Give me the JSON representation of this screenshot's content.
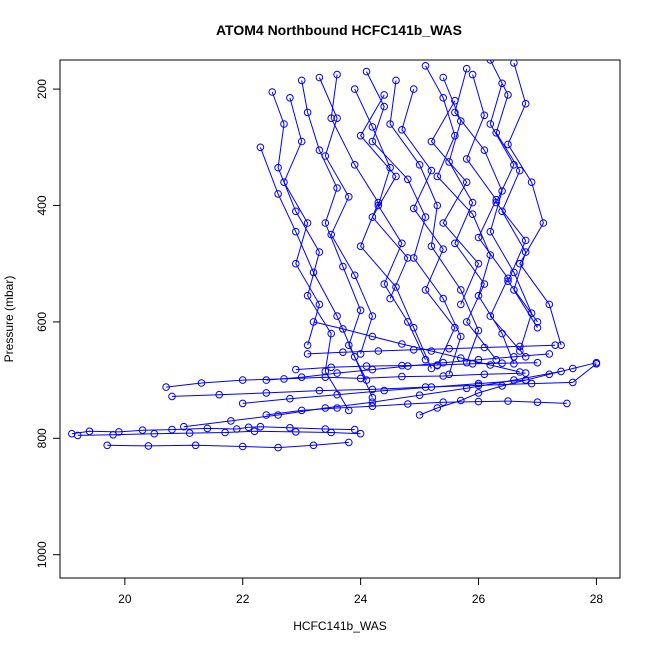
{
  "chart_data": {
    "type": "scatter",
    "title": "ATOM4 Northbound HCFC141b_WAS",
    "xlabel": "HCFC141b_WAS",
    "ylabel": "Pressure (mbar)",
    "xlim": [
      18.9,
      28.4
    ],
    "ylim": [
      1040,
      150
    ],
    "y_reversed": true,
    "grid": false,
    "legend": "none",
    "marker": "open-circle",
    "connect_points": true,
    "color": "#0000ff",
    "x_ticks": [
      20,
      22,
      24,
      26,
      28
    ],
    "x_tick_labels": [
      "20",
      "22",
      "24",
      "26",
      "28"
    ],
    "y_ticks": [
      200,
      400,
      600,
      800,
      1000
    ],
    "y_tick_labels": [
      "200",
      "400",
      "600",
      "800",
      "1000"
    ],
    "series": [
      {
        "x": [
          19.1,
          19.4,
          19.9,
          20.3,
          20.8,
          21.4,
          21.9,
          22.1,
          22.3,
          22.8,
          23.4,
          23.9
        ],
        "y": [
          792,
          788,
          789,
          786,
          785,
          783,
          784,
          781,
          780,
          782,
          784,
          785
        ]
      },
      {
        "x": [
          19.2,
          19.8,
          20.5,
          21.1,
          21.7,
          22.2,
          22.9,
          23.5,
          24.0
        ],
        "y": [
          795,
          794,
          792,
          791,
          790,
          788,
          789,
          790,
          792
        ]
      },
      {
        "x": [
          19.7,
          20.4,
          21.2,
          22.0,
          22.6,
          23.2,
          23.8
        ],
        "y": [
          812,
          813,
          812,
          814,
          816,
          812,
          807
        ]
      },
      {
        "x": [
          20.7,
          21.3,
          22.0,
          22.7,
          23.4,
          24.0,
          24.7,
          25.4,
          26.1,
          26.8
        ],
        "y": [
          712,
          705,
          700,
          698,
          695,
          697,
          694,
          693,
          690,
          688
        ]
      },
      {
        "x": [
          20.8,
          21.6,
          22.4,
          23.3,
          24.2,
          25.1,
          26.0,
          26.9,
          27.6,
          28.0
        ],
        "y": [
          728,
          725,
          722,
          718,
          716,
          712,
          709,
          706,
          704,
          672
        ]
      },
      {
        "x": [
          22.4,
          23.0,
          23.6,
          24.2,
          24.8,
          25.4,
          26.0,
          26.5,
          27.0,
          27.5
        ],
        "y": [
          760,
          752,
          748,
          745,
          741,
          738,
          737,
          736,
          738,
          740
        ]
      },
      {
        "x": [
          22.9,
          23.5,
          24.1,
          24.7,
          25.3,
          25.9,
          26.4,
          27.0
        ],
        "y": [
          682,
          678,
          676,
          675,
          674,
          672,
          671,
          670
        ]
      },
      {
        "x": [
          23.1,
          23.7,
          24.3,
          24.9,
          25.5,
          26.1,
          26.7,
          27.3
        ],
        "y": [
          655,
          652,
          650,
          648,
          646,
          644,
          642,
          640
        ]
      },
      {
        "x": [
          22.5,
          22.7,
          22.6,
          22.9,
          23.3,
          23.1,
          23.5,
          23.4,
          23.8
        ],
        "y": [
          205,
          260,
          335,
          410,
          480,
          555,
          620,
          685,
          752
        ]
      },
      {
        "x": [
          22.3,
          22.6,
          22.9,
          23.2,
          23.6,
          23.9,
          24.2
        ],
        "y": [
          300,
          380,
          445,
          515,
          590,
          660,
          730
        ]
      },
      {
        "x": [
          23.0,
          23.1,
          23.3,
          23.6,
          23.4,
          23.7,
          24.0,
          23.8,
          24.1
        ],
        "y": [
          185,
          240,
          305,
          370,
          430,
          505,
          580,
          640,
          700
        ]
      },
      {
        "x": [
          23.6,
          23.5,
          23.9,
          24.3,
          24.0,
          24.6,
          24.9,
          25.2
        ],
        "y": [
          175,
          250,
          330,
          395,
          470,
          540,
          610,
          680
        ]
      },
      {
        "x": [
          24.1,
          24.4,
          24.2,
          24.8,
          25.1,
          24.9,
          25.4,
          25.7,
          25.5
        ],
        "y": [
          170,
          230,
          290,
          355,
          420,
          490,
          560,
          625,
          690
        ]
      },
      {
        "x": [
          24.6,
          24.5,
          25.0,
          25.3,
          25.2,
          25.7,
          26.0,
          25.8
        ],
        "y": [
          185,
          260,
          330,
          400,
          470,
          545,
          615,
          670
        ]
      },
      {
        "x": [
          25.1,
          25.4,
          25.6,
          25.3,
          25.9,
          26.2,
          26.0,
          26.4,
          26.6
        ],
        "y": [
          160,
          215,
          280,
          350,
          415,
          485,
          555,
          620,
          672
        ]
      },
      {
        "x": [
          25.8,
          25.6,
          26.1,
          26.4,
          26.2,
          26.6,
          26.9,
          26.7
        ],
        "y": [
          165,
          240,
          305,
          375,
          445,
          515,
          585,
          650
        ]
      },
      {
        "x": [
          26.2,
          26.5,
          26.3,
          26.7,
          26.4,
          26.8,
          26.6,
          27.0
        ],
        "y": [
          150,
          210,
          275,
          340,
          410,
          480,
          545,
          610
        ]
      },
      {
        "x": [
          26.6,
          26.8,
          26.5,
          26.9,
          27.1,
          26.7,
          27.2,
          27.4
        ],
        "y": [
          155,
          225,
          295,
          360,
          430,
          500,
          570,
          640
        ]
      },
      {
        "x": [
          25.9,
          26.1,
          25.8,
          26.3,
          26.0,
          26.5,
          26.2,
          26.8
        ],
        "y": [
          175,
          245,
          320,
          390,
          455,
          525,
          590,
          660
        ]
      },
      {
        "x": [
          25.4,
          25.7,
          25.5,
          25.9,
          25.6,
          26.1,
          25.8,
          26.3
        ],
        "y": [
          180,
          255,
          325,
          395,
          465,
          535,
          600,
          665
        ]
      },
      {
        "x": [
          24.9,
          24.7,
          25.2,
          24.9,
          25.4,
          25.1,
          25.6,
          25.3
        ],
        "y": [
          200,
          270,
          340,
          405,
          475,
          545,
          610,
          675
        ]
      },
      {
        "x": [
          23.3,
          23.6,
          23.4,
          23.8,
          23.5,
          23.9,
          24.2,
          24.0
        ],
        "y": [
          180,
          250,
          315,
          385,
          450,
          520,
          590,
          655
        ]
      },
      {
        "x": [
          22.8,
          23.0,
          22.7,
          23.1,
          22.9,
          23.3,
          23.1
        ],
        "y": [
          215,
          290,
          360,
          430,
          500,
          570,
          640
        ]
      },
      {
        "x": [
          23.9,
          24.2,
          24.5,
          24.3,
          24.7,
          24.4,
          24.8,
          25.1
        ],
        "y": [
          200,
          265,
          335,
          400,
          465,
          535,
          600,
          665
        ]
      },
      {
        "x": [
          26.4,
          26.2,
          26.6,
          26.3,
          26.8,
          26.5,
          27.0
        ],
        "y": [
          190,
          260,
          330,
          395,
          460,
          530,
          600
        ]
      },
      {
        "x": [
          25.0,
          25.3,
          25.7,
          26.0,
          26.4,
          26.8,
          27.2,
          27.6,
          28.0
        ],
        "y": [
          760,
          748,
          735,
          722,
          710,
          700,
          690,
          680,
          670
        ]
      },
      {
        "x": [
          21.0,
          21.8,
          22.6,
          23.4,
          24.2,
          25.0,
          25.8,
          26.6,
          27.4
        ],
        "y": [
          780,
          770,
          760,
          748,
          738,
          726,
          714,
          700,
          685
        ]
      },
      {
        "x": [
          22.0,
          22.8,
          23.6,
          24.4,
          25.2,
          26.0,
          26.8
        ],
        "y": [
          740,
          732,
          725,
          718,
          712,
          706,
          700
        ]
      },
      {
        "x": [
          23.2,
          23.7,
          24.2,
          24.7,
          25.2,
          25.7,
          26.2,
          26.7
        ],
        "y": [
          600,
          612,
          625,
          638,
          650,
          662,
          674,
          686
        ]
      },
      {
        "x": [
          22.4,
          23.0,
          23.6,
          24.2,
          24.8,
          25.4,
          26.0,
          26.6,
          27.2
        ],
        "y": [
          700,
          695,
          688,
          682,
          676,
          670,
          665,
          660,
          655
        ]
      },
      {
        "x": [
          24.4,
          24.0,
          24.6,
          24.2,
          24.8,
          24.5
        ],
        "y": [
          210,
          280,
          350,
          420,
          490,
          560
        ]
      },
      {
        "x": [
          25.6,
          25.2,
          25.8,
          25.4,
          26.0,
          25.7
        ],
        "y": [
          220,
          290,
          360,
          430,
          500,
          570
        ]
      }
    ]
  }
}
